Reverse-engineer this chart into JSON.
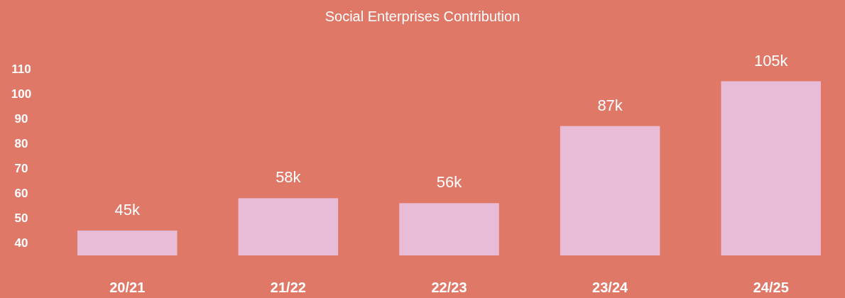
{
  "chart_data": {
    "type": "bar",
    "title": "Social Enterprises Contribution",
    "categories": [
      "20/21",
      "21/22",
      "22/23",
      "23/24",
      "24/25"
    ],
    "values": [
      45,
      58,
      56,
      87,
      105
    ],
    "value_labels": [
      "45k",
      "58k",
      "56k",
      "87k",
      "105k"
    ],
    "color": "#e8bcd6",
    "ylim": [
      35,
      110
    ],
    "yticks": [
      40,
      50,
      60,
      70,
      80,
      90,
      100,
      110
    ],
    "grid": false
  }
}
